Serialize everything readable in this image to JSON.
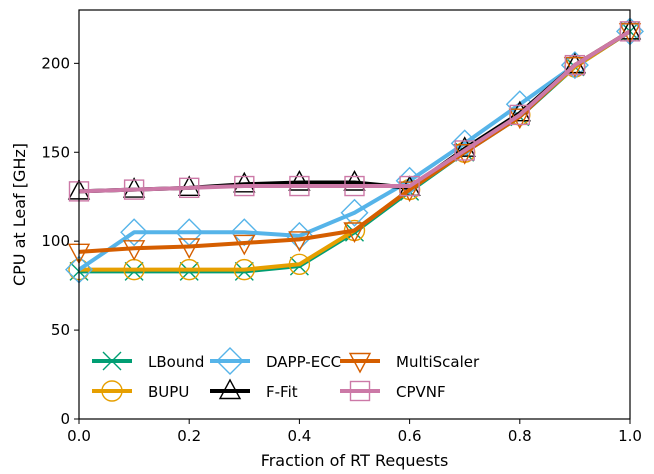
{
  "chart_data": {
    "type": "line",
    "title": "",
    "xlabel": "Fraction of RT Requests",
    "ylabel": "CPU at Leaf [GHz]",
    "xlim": [
      0.0,
      1.0
    ],
    "ylim": [
      0,
      230
    ],
    "xticks": [
      0.0,
      0.2,
      0.4,
      0.6,
      0.8,
      1.0
    ],
    "xtick_labels": [
      "0.0",
      "0.2",
      "0.4",
      "0.6",
      "0.8",
      "1.0"
    ],
    "yticks": [
      0,
      50,
      100,
      150,
      200
    ],
    "ytick_labels": [
      "0",
      "50",
      "100",
      "150",
      "200"
    ],
    "grid": false,
    "legend_position": "lower-left, 3 columns",
    "x": [
      0.0,
      0.1,
      0.2,
      0.3,
      0.4,
      0.5,
      0.6,
      0.7,
      0.8,
      0.9,
      1.0
    ],
    "series": [
      {
        "name": "LBound",
        "color": "#009e73",
        "marker": "x",
        "values": [
          83,
          83,
          83,
          83,
          86,
          105,
          128,
          150,
          170,
          198,
          218
        ]
      },
      {
        "name": "BUPU",
        "color": "#e69f00",
        "marker": "circle",
        "values": [
          84,
          84,
          84,
          84,
          87,
          106,
          129,
          150,
          171,
          198,
          218
        ]
      },
      {
        "name": "DAPP-ECC",
        "color": "#56b4e9",
        "marker": "diamond",
        "values": [
          84,
          105,
          105,
          105,
          103,
          116,
          134,
          155,
          177,
          199,
          218
        ]
      },
      {
        "name": "F-Fit",
        "color": "#000000",
        "marker": "triangle-up",
        "values": [
          128,
          129,
          130,
          132,
          133,
          133,
          130,
          152,
          172,
          199,
          218
        ]
      },
      {
        "name": "MultiScaler",
        "color": "#d55e00",
        "marker": "triangle-down",
        "values": [
          94,
          96,
          97,
          99,
          101,
          106,
          129,
          150,
          170,
          199,
          218
        ]
      },
      {
        "name": "CPVNF",
        "color": "#cc79a7",
        "marker": "square",
        "values": [
          128,
          129,
          130,
          131,
          131,
          131,
          131,
          151,
          171,
          199,
          218
        ]
      }
    ]
  }
}
